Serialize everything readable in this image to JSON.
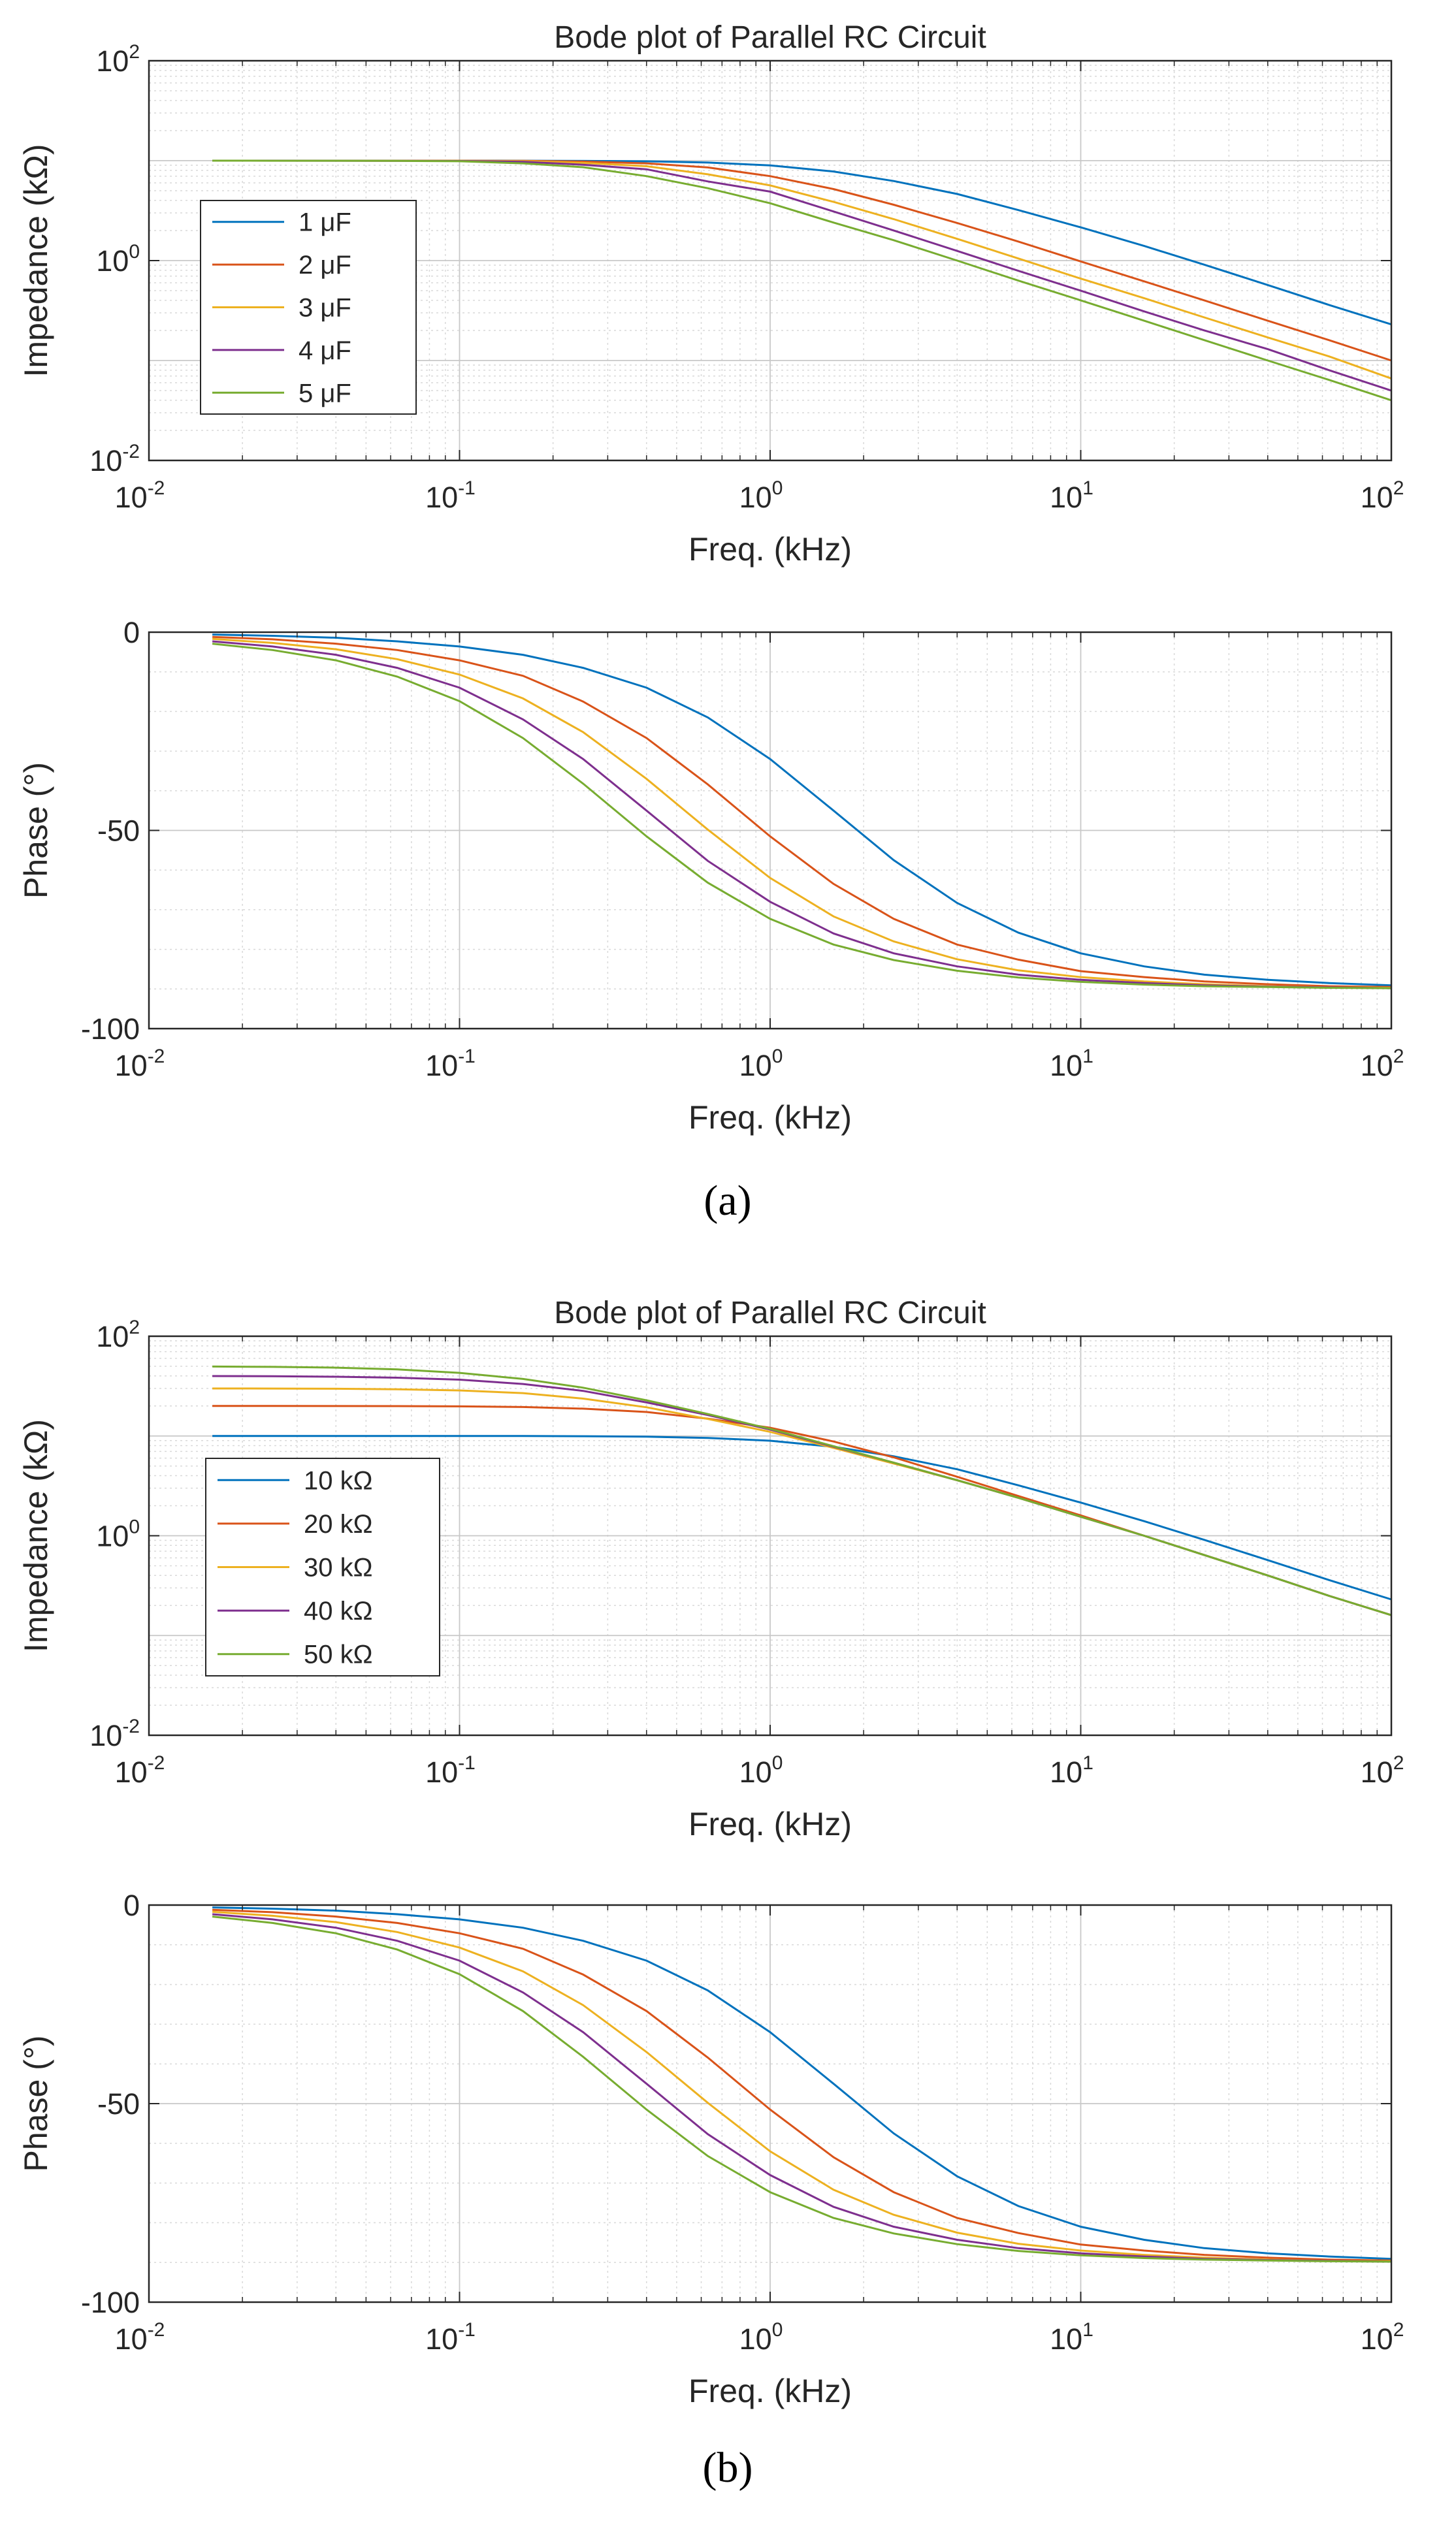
{
  "figure": {
    "panels": [
      {
        "label": "(a)"
      },
      {
        "label": "(b)"
      }
    ]
  },
  "colors": {
    "series": [
      "#0072bd",
      "#d95319",
      "#edb120",
      "#7e2f8e",
      "#77ac30"
    ],
    "axis": "#262626",
    "grid": "#c8c8c8"
  },
  "chart_data": [
    {
      "id": "a-impedance",
      "type": "line",
      "title": "Bode plot of Parallel RC Circuit",
      "xlabel": "Freq. (kHz)",
      "ylabel": "Impedance (kΩ)",
      "xscale": "log",
      "yscale": "log",
      "xlim": [
        0.01,
        100
      ],
      "ylim": [
        0.01,
        100
      ],
      "xticks": [
        {
          "base": "10",
          "exp": "-2"
        },
        {
          "base": "10",
          "exp": "-1"
        },
        {
          "base": "10",
          "exp": "0"
        },
        {
          "base": "10",
          "exp": "1"
        },
        {
          "base": "10",
          "exp": "2"
        }
      ],
      "yticks": [
        {
          "base": "10",
          "exp": "-2"
        },
        {
          "base": "10",
          "exp": "0"
        },
        {
          "base": "10",
          "exp": "2"
        }
      ],
      "grid": true,
      "legend": "left",
      "x": [
        0.016,
        0.025,
        0.04,
        0.063,
        0.1,
        0.16,
        0.25,
        0.4,
        0.63,
        1,
        1.6,
        2.5,
        4,
        6.3,
        10,
        16,
        25,
        40,
        63,
        100
      ],
      "series": [
        {
          "name": "1 μF",
          "values": [
            10,
            10,
            10,
            10,
            10,
            9.99,
            9.94,
            9.85,
            9.57,
            8.97,
            7.79,
            6.25,
            4.64,
            3.2,
            2.15,
            1.4,
            0.91,
            0.57,
            0.36,
            0.23
          ]
        },
        {
          "name": "2 μF",
          "values": [
            10,
            10,
            10,
            10,
            9.98,
            9.95,
            9.79,
            9.4,
            8.55,
            7.0,
            5.2,
            3.62,
            2.38,
            1.55,
            0.98,
            0.62,
            0.4,
            0.25,
            0.16,
            0.1
          ]
        },
        {
          "name": "3 μF",
          "values": [
            10,
            10,
            10,
            9.99,
            9.96,
            9.89,
            9.5,
            8.8,
            7.3,
            5.65,
            3.87,
            2.6,
            1.65,
            1.05,
            0.66,
            0.42,
            0.27,
            0.17,
            0.11,
            0.066
          ]
        },
        {
          "name": "4 μF",
          "values": [
            10,
            10,
            9.99,
            9.97,
            9.93,
            9.74,
            9.1,
            8.2,
            6.2,
            4.9,
            3.1,
            2.0,
            1.25,
            0.79,
            0.5,
            0.31,
            0.2,
            0.13,
            0.08,
            0.05
          ]
        },
        {
          "name": "5 μF",
          "values": [
            10,
            9.99,
            9.98,
            9.95,
            9.86,
            9.4,
            8.6,
            7.0,
            5.3,
            3.75,
            2.4,
            1.6,
            1.0,
            0.63,
            0.4,
            0.25,
            0.16,
            0.1,
            0.064,
            0.04
          ]
        }
      ]
    },
    {
      "id": "a-phase",
      "type": "line",
      "title": "",
      "xlabel": "Freq. (kHz)",
      "ylabel": "Phase (°)",
      "xscale": "log",
      "yscale": "linear",
      "xlim": [
        0.01,
        100
      ],
      "ylim": [
        -100,
        0
      ],
      "xticks": [
        {
          "base": "10",
          "exp": "-2"
        },
        {
          "base": "10",
          "exp": "-1"
        },
        {
          "base": "10",
          "exp": "0"
        },
        {
          "base": "10",
          "exp": "1"
        },
        {
          "base": "10",
          "exp": "2"
        }
      ],
      "yticks": [
        {
          "base": "-100",
          "exp": ""
        },
        {
          "base": "-50",
          "exp": ""
        },
        {
          "base": "0",
          "exp": ""
        }
      ],
      "grid": true,
      "x": [
        0.016,
        0.025,
        0.04,
        0.063,
        0.1,
        0.16,
        0.25,
        0.4,
        0.63,
        1,
        1.6,
        2.5,
        4,
        6.3,
        10,
        16,
        25,
        40,
        63,
        100
      ],
      "series": [
        {
          "name": "1 μF",
          "values": [
            -0.6,
            -0.9,
            -1.4,
            -2.3,
            -3.6,
            -5.7,
            -9,
            -14,
            -21.5,
            -32,
            -45,
            -57.5,
            -68.3,
            -75.8,
            -81,
            -84.3,
            -86.4,
            -87.7,
            -88.5,
            -89.1
          ]
        },
        {
          "name": "2 μF",
          "values": [
            -1.2,
            -1.8,
            -2.9,
            -4.5,
            -7.1,
            -11,
            -17.5,
            -26.7,
            -38.4,
            -51.5,
            -63.5,
            -72.3,
            -78.8,
            -82.6,
            -85.5,
            -87,
            -88.1,
            -88.8,
            -89.3,
            -89.5
          ]
        },
        {
          "name": "3 μF",
          "values": [
            -1.7,
            -2.7,
            -4.3,
            -6.8,
            -10.7,
            -16.7,
            -25.2,
            -37,
            -49.8,
            -62,
            -71.7,
            -78,
            -82.5,
            -85.3,
            -87,
            -88.1,
            -88.8,
            -89.3,
            -89.6,
            -89.7
          ]
        },
        {
          "name": "4 μF",
          "values": [
            -2.3,
            -3.6,
            -5.7,
            -9,
            -14,
            -22,
            -32,
            -45,
            -57.7,
            -68,
            -76,
            -81,
            -84.3,
            -86.4,
            -87.7,
            -88.5,
            -89.1,
            -89.4,
            -89.6,
            -89.8
          ]
        },
        {
          "name": "5 μF",
          "values": [
            -2.9,
            -4.5,
            -7.1,
            -11.2,
            -17.4,
            -26.7,
            -38.2,
            -51.5,
            -63.2,
            -72.3,
            -78.8,
            -82.7,
            -85.4,
            -87.1,
            -88.2,
            -88.9,
            -89.3,
            -89.5,
            -89.7,
            -89.8
          ]
        }
      ]
    },
    {
      "id": "b-impedance",
      "type": "line",
      "title": "Bode plot of Parallel RC Circuit",
      "xlabel": "Freq. (kHz)",
      "ylabel": "Impedance (kΩ)",
      "xscale": "log",
      "yscale": "log",
      "xlim": [
        0.01,
        100
      ],
      "ylim": [
        0.01,
        100
      ],
      "xticks": [
        {
          "base": "10",
          "exp": "-2"
        },
        {
          "base": "10",
          "exp": "-1"
        },
        {
          "base": "10",
          "exp": "0"
        },
        {
          "base": "10",
          "exp": "1"
        },
        {
          "base": "10",
          "exp": "2"
        }
      ],
      "yticks": [
        {
          "base": "10",
          "exp": "-2"
        },
        {
          "base": "10",
          "exp": "0"
        },
        {
          "base": "10",
          "exp": "2"
        }
      ],
      "grid": true,
      "legend": "left",
      "x": [
        0.016,
        0.025,
        0.04,
        0.063,
        0.1,
        0.16,
        0.25,
        0.4,
        0.63,
        1,
        1.6,
        2.5,
        4,
        6.3,
        10,
        16,
        25,
        40,
        63,
        100
      ],
      "series": [
        {
          "name": "10 kΩ",
          "values": [
            10,
            10,
            10,
            10,
            10,
            9.99,
            9.94,
            9.85,
            9.57,
            8.97,
            7.79,
            6.25,
            4.64,
            3.2,
            2.15,
            1.4,
            0.91,
            0.57,
            0.36,
            0.23
          ]
        },
        {
          "name": "20 kΩ",
          "values": [
            19.99,
            19.99,
            19.97,
            19.92,
            19.8,
            19.5,
            18.8,
            17.4,
            14.9,
            12.1,
            8.8,
            6.1,
            3.9,
            2.5,
            1.6,
            1.0,
            0.64,
            0.4,
            0.25,
            0.16
          ]
        },
        {
          "name": "30 kΩ",
          "values": [
            29.96,
            29.91,
            29.77,
            29.4,
            28.6,
            26.9,
            23.7,
            19.4,
            14.8,
            11.0,
            7.6,
            5.3,
            3.6,
            2.4,
            1.55,
            1.0,
            0.64,
            0.4,
            0.25,
            0.16
          ]
        },
        {
          "name": "40 kΩ",
          "values": [
            39.9,
            39.7,
            39.3,
            38.4,
            36.7,
            33.2,
            28.3,
            21.7,
            16.2,
            11.6,
            7.8,
            5.4,
            3.6,
            2.4,
            1.55,
            1.0,
            0.64,
            0.4,
            0.25,
            0.16
          ]
        },
        {
          "name": "50 kΩ",
          "values": [
            49.7,
            49.3,
            48.4,
            46.5,
            42.9,
            37.3,
            30.5,
            22.8,
            16.6,
            11.8,
            7.9,
            5.4,
            3.6,
            2.4,
            1.55,
            1.0,
            0.64,
            0.4,
            0.25,
            0.16
          ]
        }
      ]
    },
    {
      "id": "b-phase",
      "type": "line",
      "title": "",
      "xlabel": "Freq. (kHz)",
      "ylabel": "Phase (°)",
      "xscale": "log",
      "yscale": "linear",
      "xlim": [
        0.01,
        100
      ],
      "ylim": [
        -100,
        0
      ],
      "xticks": [
        {
          "base": "10",
          "exp": "-2"
        },
        {
          "base": "10",
          "exp": "-1"
        },
        {
          "base": "10",
          "exp": "0"
        },
        {
          "base": "10",
          "exp": "1"
        },
        {
          "base": "10",
          "exp": "2"
        }
      ],
      "yticks": [
        {
          "base": "-100",
          "exp": ""
        },
        {
          "base": "-50",
          "exp": ""
        },
        {
          "base": "0",
          "exp": ""
        }
      ],
      "grid": true,
      "x": [
        0.016,
        0.025,
        0.04,
        0.063,
        0.1,
        0.16,
        0.25,
        0.4,
        0.63,
        1,
        1.6,
        2.5,
        4,
        6.3,
        10,
        16,
        25,
        40,
        63,
        100
      ],
      "series": [
        {
          "name": "10 kΩ",
          "values": [
            -0.6,
            -0.9,
            -1.4,
            -2.3,
            -3.6,
            -5.7,
            -9,
            -14,
            -21.5,
            -32,
            -45,
            -57.5,
            -68.3,
            -75.8,
            -81,
            -84.3,
            -86.4,
            -87.7,
            -88.5,
            -89.1
          ]
        },
        {
          "name": "20 kΩ",
          "values": [
            -1.2,
            -1.8,
            -2.9,
            -4.5,
            -7.1,
            -11,
            -17.5,
            -26.7,
            -38.4,
            -51.5,
            -63.5,
            -72.3,
            -78.8,
            -82.6,
            -85.5,
            -87,
            -88.1,
            -88.8,
            -89.3,
            -89.5
          ]
        },
        {
          "name": "30 kΩ",
          "values": [
            -1.7,
            -2.7,
            -4.3,
            -6.8,
            -10.7,
            -16.7,
            -25.2,
            -37,
            -49.8,
            -62,
            -71.7,
            -78,
            -82.5,
            -85.3,
            -87,
            -88.1,
            -88.8,
            -89.3,
            -89.6,
            -89.7
          ]
        },
        {
          "name": "40 kΩ",
          "values": [
            -2.3,
            -3.6,
            -5.7,
            -9,
            -14,
            -22,
            -32,
            -45,
            -57.7,
            -68,
            -76,
            -81,
            -84.3,
            -86.4,
            -87.7,
            -88.5,
            -89.1,
            -89.4,
            -89.6,
            -89.8
          ]
        },
        {
          "name": "50 kΩ",
          "values": [
            -2.9,
            -4.5,
            -7.1,
            -11.2,
            -17.4,
            -26.7,
            -38.2,
            -51.5,
            -63.2,
            -72.3,
            -78.8,
            -82.7,
            -85.4,
            -87.1,
            -88.2,
            -88.9,
            -89.3,
            -89.5,
            -89.7,
            -89.8
          ]
        }
      ]
    }
  ]
}
